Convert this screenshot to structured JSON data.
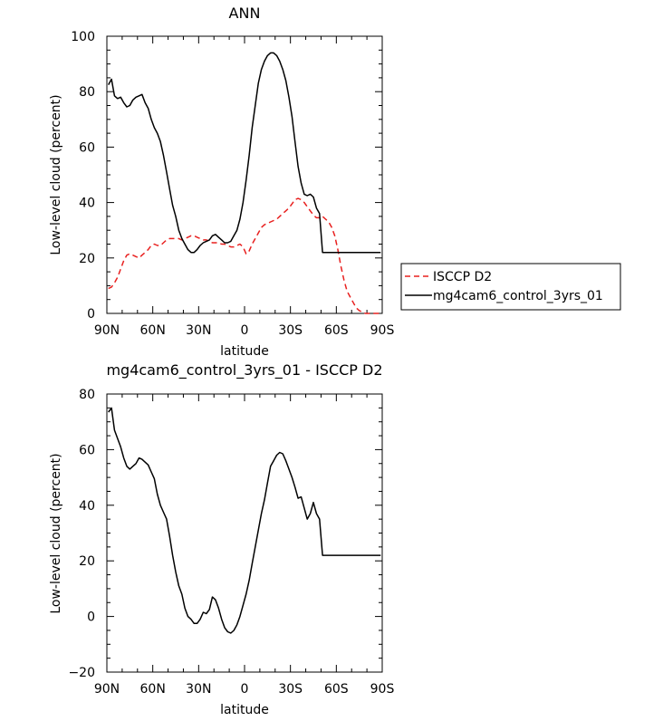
{
  "chart_data": [
    {
      "type": "line",
      "title": "ANN",
      "xlabel": "latitude",
      "ylabel": "Low-level cloud (percent)",
      "xlim": [
        90,
        -90
      ],
      "ylim": [
        0,
        100
      ],
      "x_ticks": [
        90,
        60,
        30,
        0,
        -30,
        -60,
        -90
      ],
      "x_tick_labels": [
        "90N",
        "60N",
        "30N",
        "0",
        "30S",
        "60S",
        "90S"
      ],
      "y_ticks": [
        0,
        20,
        40,
        60,
        80,
        100
      ],
      "y_tick_labels": [
        "0",
        "20",
        "40",
        "60",
        "80",
        "100"
      ],
      "legend_position": "right",
      "series": [
        {
          "name": "ISCCP D2",
          "color": "#e8201f",
          "dash": "dashed",
          "x": [
            89,
            87,
            85,
            83,
            81,
            79,
            77,
            75,
            73,
            71,
            69,
            67,
            65,
            63,
            61,
            59,
            57,
            55,
            53,
            51,
            49,
            47,
            45,
            43,
            41,
            39,
            37,
            35,
            33,
            31,
            29,
            27,
            25,
            23,
            21,
            19,
            17,
            15,
            13,
            11,
            9,
            7,
            5,
            3,
            1,
            -1,
            -3,
            -5,
            -7,
            -9,
            -11,
            -13,
            -15,
            -17,
            -19,
            -21,
            -23,
            -25,
            -27,
            -29,
            -31,
            -33,
            -35,
            -37,
            -39,
            -41,
            -43,
            -45,
            -47,
            -49,
            -51,
            -53,
            -55,
            -57,
            -59,
            -61,
            -63,
            -65,
            -67,
            -69,
            -71,
            -73,
            -75,
            -77,
            -79,
            -81,
            -83,
            -85,
            -87,
            -89
          ],
          "y": [
            9,
            9.5,
            11,
            13,
            16,
            19,
            21,
            21.5,
            21,
            20.5,
            20,
            21,
            22,
            23,
            24.5,
            25,
            24.5,
            24.5,
            25.5,
            26.5,
            27,
            27,
            27,
            27,
            26.5,
            27,
            27.5,
            28,
            28,
            27.5,
            27,
            26.5,
            26.5,
            26,
            25.5,
            25.5,
            25.5,
            25,
            25,
            24.5,
            24,
            24,
            24.5,
            25,
            24,
            21.5,
            22.5,
            25,
            27,
            29,
            31,
            32,
            32.5,
            33,
            33.5,
            34,
            35,
            36,
            37,
            38,
            39.5,
            41,
            41.5,
            41,
            40,
            38.5,
            37,
            35.5,
            34.5,
            34.5,
            35,
            34,
            33,
            31,
            28,
            23,
            17,
            12,
            8,
            6,
            4,
            2,
            1,
            0.5,
            0,
            0,
            0,
            0,
            0,
            0
          ]
        },
        {
          "name": "mg4cam6_control_3yrs_01",
          "color": "#000000",
          "dash": "solid",
          "x": [
            89,
            87,
            85,
            83,
            81,
            79,
            77,
            75,
            73,
            71,
            69,
            67,
            65,
            63,
            61,
            59,
            57,
            55,
            53,
            51,
            49,
            47,
            45,
            43,
            41,
            39,
            37,
            35,
            33,
            31,
            29,
            27,
            25,
            23,
            21,
            19,
            17,
            15,
            13,
            11,
            9,
            7,
            5,
            3,
            1,
            -1,
            -3,
            -5,
            -7,
            -9,
            -11,
            -13,
            -15,
            -17,
            -19,
            -21,
            -23,
            -25,
            -27,
            -29,
            -31,
            -33,
            -35,
            -37,
            -39,
            -41,
            -43,
            -45,
            -47,
            -49,
            -51,
            -53,
            -55,
            -57,
            -59,
            -61,
            -63,
            -65,
            -67,
            -69,
            -71,
            -73,
            -75,
            -77,
            -79,
            -81,
            -83,
            -85,
            -87,
            -89
          ],
          "y": [
            82.5,
            84.5,
            78.5,
            77.5,
            78,
            76,
            74.5,
            75,
            77,
            78,
            78.5,
            79,
            76,
            74,
            70,
            67,
            65,
            62,
            57,
            51,
            45,
            39,
            35,
            30,
            27,
            25,
            23,
            22,
            22,
            23,
            24.5,
            25.5,
            26,
            26.5,
            28,
            28.5,
            27.5,
            26.5,
            25.5,
            25.5,
            26,
            28,
            30,
            34,
            40,
            48,
            57,
            67,
            75,
            83,
            88,
            91,
            93,
            94,
            94,
            93,
            91,
            88,
            84,
            78,
            71,
            62,
            53,
            47,
            43,
            42.5,
            43,
            42,
            38,
            36,
            22,
            22,
            22,
            22,
            22,
            22,
            22,
            22,
            22,
            22,
            22,
            22,
            22,
            22,
            22,
            22,
            22,
            22,
            22,
            22
          ]
        }
      ]
    },
    {
      "type": "line",
      "title": "mg4cam6_control_3yrs_01 - ISCCP D2",
      "xlabel": "latitude",
      "ylabel": "Low-level cloud (percent)",
      "xlim": [
        90,
        -90
      ],
      "ylim": [
        -20,
        80
      ],
      "x_ticks": [
        90,
        60,
        30,
        0,
        -30,
        -60,
        -90
      ],
      "x_tick_labels": [
        "90N",
        "60N",
        "30N",
        "0",
        "30S",
        "60S",
        "90S"
      ],
      "y_ticks": [
        -20,
        0,
        20,
        40,
        60,
        80
      ],
      "y_tick_labels": [
        "−20",
        "0",
        "20",
        "40",
        "60",
        "80"
      ],
      "series": [
        {
          "color": "#000000",
          "dash": "solid",
          "x": [
            89,
            87,
            85,
            83,
            81,
            79,
            77,
            75,
            73,
            71,
            69,
            67,
            65,
            63,
            61,
            59,
            57,
            55,
            53,
            51,
            49,
            47,
            45,
            43,
            41,
            39,
            37,
            35,
            33,
            31,
            29,
            27,
            25,
            23,
            21,
            19,
            17,
            15,
            13,
            11,
            9,
            7,
            5,
            3,
            1,
            -1,
            -3,
            -5,
            -7,
            -9,
            -11,
            -13,
            -15,
            -17,
            -19,
            -21,
            -23,
            -25,
            -27,
            -29,
            -31,
            -33,
            -35,
            -37,
            -39,
            -41,
            -43,
            -45,
            -47,
            -49,
            -51,
            -53,
            -55,
            -57,
            -59,
            -61,
            -63,
            -65,
            -67,
            -69,
            -71,
            -73,
            -75,
            -77,
            -79,
            -81,
            -83,
            -85,
            -87,
            -89
          ],
          "y": [
            73.5,
            75,
            67,
            64,
            61,
            57,
            54,
            53,
            54,
            55,
            57,
            56.5,
            55.5,
            54.5,
            52,
            49.5,
            44,
            40,
            37.5,
            35,
            29,
            22,
            16,
            11,
            8,
            3,
            0,
            -1,
            -2.5,
            -2.5,
            -1,
            1.5,
            1,
            2.5,
            7,
            6,
            3,
            -1,
            -4,
            -5.5,
            -6,
            -5,
            -3,
            0,
            4,
            8,
            13,
            19,
            25,
            31,
            37,
            42,
            48,
            54,
            56,
            58,
            59,
            58.5,
            56,
            53,
            50,
            46.5,
            42.5,
            43,
            39,
            35,
            37,
            41,
            37,
            35,
            22,
            22,
            22,
            22,
            22,
            22,
            22,
            22,
            22,
            22,
            22,
            22,
            22,
            22,
            22,
            22,
            22,
            22,
            22,
            22
          ]
        }
      ]
    }
  ]
}
